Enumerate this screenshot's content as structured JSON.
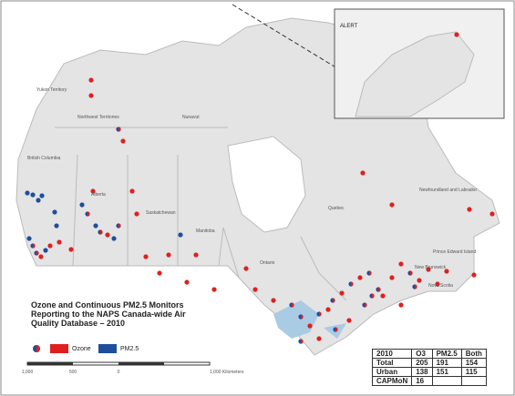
{
  "inset": {
    "label": "ALERT"
  },
  "regions": [
    "Yukon Territory",
    "Northwest Territories",
    "Nunavut",
    "British Columbia",
    "Alberta",
    "Saskatchewan",
    "Manitoba",
    "Ontario",
    "Quebec",
    "Newfoundland and Labrador",
    "Prince Edward Island",
    "New Brunswick",
    "Nova Scotia"
  ],
  "title": "Ozone and Continuous PM2.5 Monitors Reporting to the NAPS Canada-wide Air Quality Database – 2010",
  "legend": {
    "items": [
      "Ozone",
      "PM2.5"
    ]
  },
  "scale": {
    "labels": [
      "1,000",
      "500",
      "0",
      "1,000 Kilometers"
    ]
  },
  "table": {
    "header": [
      "2010",
      "O3",
      "PM2.5",
      "Both"
    ],
    "rows": [
      [
        "Total",
        205,
        191,
        154
      ],
      [
        "Urban",
        138,
        151,
        115
      ],
      [
        "CAPMoN",
        16
      ]
    ]
  }
}
